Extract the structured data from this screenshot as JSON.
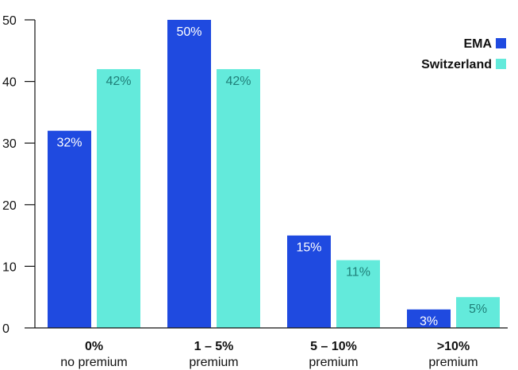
{
  "chart_data": {
    "type": "bar",
    "categories": [
      {
        "main": "0%",
        "sub": "no premium"
      },
      {
        "main": "1 – 5%",
        "sub": "premium"
      },
      {
        "main": "5 – 10%",
        "sub": "premium"
      },
      {
        "main": ">10%",
        "sub": "premium"
      }
    ],
    "series": [
      {
        "name": "EMA",
        "values": [
          32,
          50,
          15,
          3
        ],
        "labels": [
          "32%",
          "50%",
          "15%",
          "3%"
        ],
        "color": "#1f4ae0",
        "label_color": "#ffffff"
      },
      {
        "name": "Switzerland",
        "values": [
          42,
          42,
          11,
          5
        ],
        "labels": [
          "42%",
          "42%",
          "11%",
          "5%"
        ],
        "color": "#63eadb",
        "label_color": "#1f7f78"
      }
    ],
    "ylim": [
      0,
      50
    ],
    "yticks": [
      "0",
      "10",
      "20",
      "30",
      "40",
      "50"
    ],
    "ytick_values": [
      0,
      10,
      20,
      30,
      40,
      50
    ],
    "legend_position": "top-right",
    "grid": false
  }
}
